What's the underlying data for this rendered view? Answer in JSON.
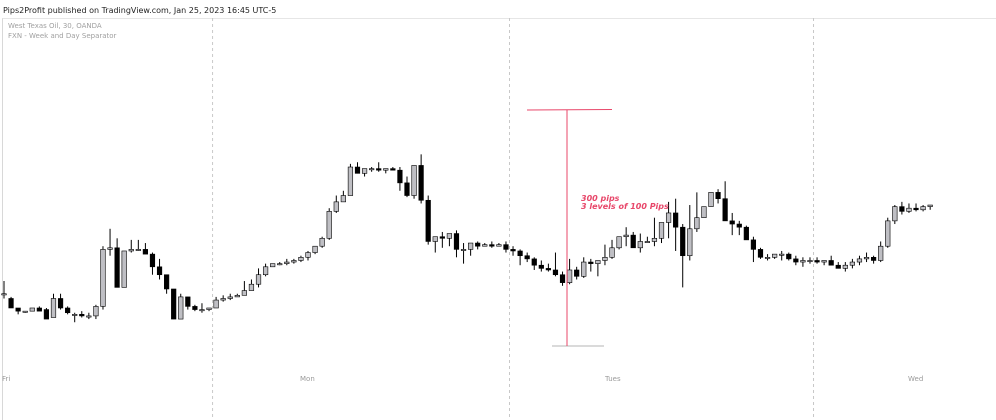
{
  "header": {
    "published": "Pips2Profit published on TradingView.com, Jan 25, 2023 16:45 UTC-5"
  },
  "legend": {
    "symbol": "West Texas Oil, 30, OANDA",
    "indicator": "FXN - Week and Day Separator"
  },
  "annotation": {
    "line1": "300 pips",
    "line2": "3 levels of 100 Pips",
    "color": "#e8476a"
  },
  "day_labels": [
    "Fri",
    "Mon",
    "Tues",
    "Wed"
  ],
  "colors": {
    "up": "#bfbfc4",
    "down": "#000000",
    "separator": "#c8c8c8"
  },
  "chart_data": {
    "type": "candlestick",
    "candles": [
      [
        84,
        92,
        84,
        81
      ],
      [
        81,
        82,
        75,
        75
      ],
      [
        75,
        75,
        73,
        71
      ],
      [
        73,
        72,
        73,
        73
      ],
      [
        73,
        75,
        75,
        74
      ],
      [
        75,
        76,
        73,
        74
      ],
      [
        74,
        75,
        68,
        69
      ],
      [
        69,
        84,
        81,
        69
      ],
      [
        81,
        84,
        75,
        74
      ],
      [
        75,
        76,
        72,
        71
      ],
      [
        71,
        72,
        71,
        66
      ],
      [
        71,
        73,
        70,
        69
      ],
      [
        70,
        72,
        70,
        68
      ],
      [
        70,
        77,
        76,
        68
      ],
      [
        76,
        114,
        112,
        74
      ],
      [
        112,
        125,
        113,
        108
      ],
      [
        113,
        119,
        88,
        88
      ],
      [
        88,
        111,
        111,
        88
      ],
      [
        111,
        118,
        112,
        110
      ],
      [
        112,
        118,
        112,
        111
      ],
      [
        112,
        116,
        109,
        109
      ],
      [
        109,
        110,
        101,
        96
      ],
      [
        101,
        106,
        96,
        93
      ],
      [
        96,
        96,
        87,
        84
      ],
      [
        87,
        87,
        68,
        68
      ],
      [
        68,
        84,
        82,
        68
      ],
      [
        82,
        82,
        76,
        74
      ],
      [
        76,
        77,
        74,
        73
      ],
      [
        74,
        78,
        74,
        72
      ],
      [
        74,
        74,
        75,
        73
      ],
      [
        75,
        82,
        80,
        80
      ],
      [
        80,
        83,
        81,
        79
      ],
      [
        81,
        84,
        82,
        80
      ],
      [
        82,
        84,
        83,
        82
      ],
      [
        83,
        92,
        86,
        84
      ],
      [
        86,
        93,
        90,
        86
      ],
      [
        90,
        100,
        96,
        88
      ],
      [
        96,
        103,
        101,
        95
      ],
      [
        101,
        103,
        103,
        101
      ],
      [
        103,
        104,
        103,
        102
      ],
      [
        103,
        106,
        104,
        102
      ],
      [
        104,
        106,
        105,
        103
      ],
      [
        105,
        108,
        107,
        104
      ],
      [
        107,
        111,
        110,
        105
      ],
      [
        110,
        112,
        114,
        109
      ],
      [
        114,
        120,
        119,
        113
      ],
      [
        119,
        138,
        136,
        118
      ],
      [
        136,
        146,
        142,
        135
      ],
      [
        142,
        149,
        146,
        142
      ],
      [
        146,
        166,
        164,
        146
      ],
      [
        164,
        167,
        160,
        160
      ],
      [
        160,
        163,
        163,
        158
      ],
      [
        163,
        164,
        163,
        161
      ],
      [
        163,
        167,
        162,
        161
      ],
      [
        162,
        163,
        163,
        160
      ],
      [
        163,
        164,
        162,
        162
      ],
      [
        162,
        164,
        154,
        149
      ],
      [
        154,
        158,
        146,
        145
      ],
      [
        146,
        165,
        165,
        144
      ],
      [
        165,
        172,
        143,
        141
      ],
      [
        143,
        146,
        117,
        115
      ],
      [
        117,
        118,
        120,
        110
      ],
      [
        120,
        123,
        119,
        113
      ],
      [
        119,
        119,
        122,
        114
      ],
      [
        122,
        124,
        112,
        107
      ],
      [
        112,
        116,
        112,
        103
      ],
      [
        112,
        115,
        116,
        108
      ],
      [
        116,
        117,
        114,
        112
      ],
      [
        114,
        116,
        115,
        114
      ],
      [
        115,
        117,
        114,
        113
      ],
      [
        114,
        116,
        115,
        114
      ],
      [
        115,
        117,
        112,
        110
      ],
      [
        112,
        114,
        111,
        108
      ],
      [
        111,
        112,
        108,
        102
      ],
      [
        108,
        110,
        106,
        104
      ],
      [
        106,
        107,
        102,
        99
      ],
      [
        102,
        105,
        100,
        98
      ],
      [
        100,
        103,
        99,
        98
      ],
      [
        99,
        110,
        96,
        95
      ],
      [
        96,
        98,
        91,
        89
      ],
      [
        91,
        106,
        99,
        90
      ],
      [
        99,
        101,
        95,
        93
      ],
      [
        95,
        107,
        104,
        94
      ],
      [
        104,
        106,
        103,
        98
      ],
      [
        103,
        104,
        105,
        95
      ],
      [
        105,
        115,
        107,
        102
      ],
      [
        107,
        118,
        113,
        106
      ],
      [
        113,
        118,
        120,
        112
      ],
      [
        120,
        126,
        121,
        114
      ],
      [
        121,
        123,
        113,
        113
      ],
      [
        113,
        122,
        117,
        110
      ],
      [
        117,
        120,
        117,
        117
      ],
      [
        117,
        132,
        119,
        114
      ],
      [
        119,
        129,
        129,
        116
      ],
      [
        129,
        142,
        135,
        119
      ],
      [
        135,
        144,
        126,
        111
      ],
      [
        126,
        128,
        108,
        88
      ],
      [
        108,
        140,
        125,
        105
      ],
      [
        125,
        148,
        132,
        123
      ],
      [
        132,
        135,
        139,
        132
      ],
      [
        139,
        141,
        148,
        139
      ],
      [
        148,
        150,
        144,
        141
      ],
      [
        144,
        155,
        130,
        130
      ],
      [
        130,
        135,
        128,
        121
      ],
      [
        128,
        130,
        126,
        121
      ],
      [
        126,
        127,
        118,
        118
      ],
      [
        118,
        120,
        112,
        104
      ],
      [
        112,
        113,
        107,
        106
      ],
      [
        107,
        109,
        107,
        105
      ],
      [
        107,
        109,
        109,
        106
      ],
      [
        109,
        111,
        109,
        105
      ],
      [
        109,
        110,
        106,
        105
      ],
      [
        106,
        108,
        104,
        102
      ],
      [
        104,
        107,
        105,
        101
      ],
      [
        105,
        107,
        105,
        103
      ],
      [
        105,
        107,
        104,
        103
      ],
      [
        104,
        105,
        105,
        102
      ],
      [
        105,
        108,
        102,
        102
      ],
      [
        102,
        104,
        100,
        100
      ],
      [
        100,
        104,
        102,
        98
      ],
      [
        102,
        106,
        104,
        100
      ],
      [
        104,
        108,
        106,
        102
      ],
      [
        106,
        110,
        107,
        104
      ],
      [
        107,
        108,
        105,
        103
      ],
      [
        105,
        117,
        114,
        104
      ],
      [
        114,
        132,
        130,
        113
      ],
      [
        130,
        140,
        139,
        128
      ],
      [
        139,
        142,
        136,
        134
      ],
      [
        136,
        141,
        138,
        135
      ],
      [
        138,
        141,
        137,
        136
      ],
      [
        137,
        140,
        139,
        136
      ],
      [
        139,
        140,
        140,
        137
      ]
    ],
    "candles_format": "[open, high, close, low] in chart price units",
    "annotation_range": {
      "high": 200,
      "low": 51,
      "label": "300 pips"
    },
    "separators_at_candle": [
      30,
      72,
      115
    ],
    "grid": false
  }
}
